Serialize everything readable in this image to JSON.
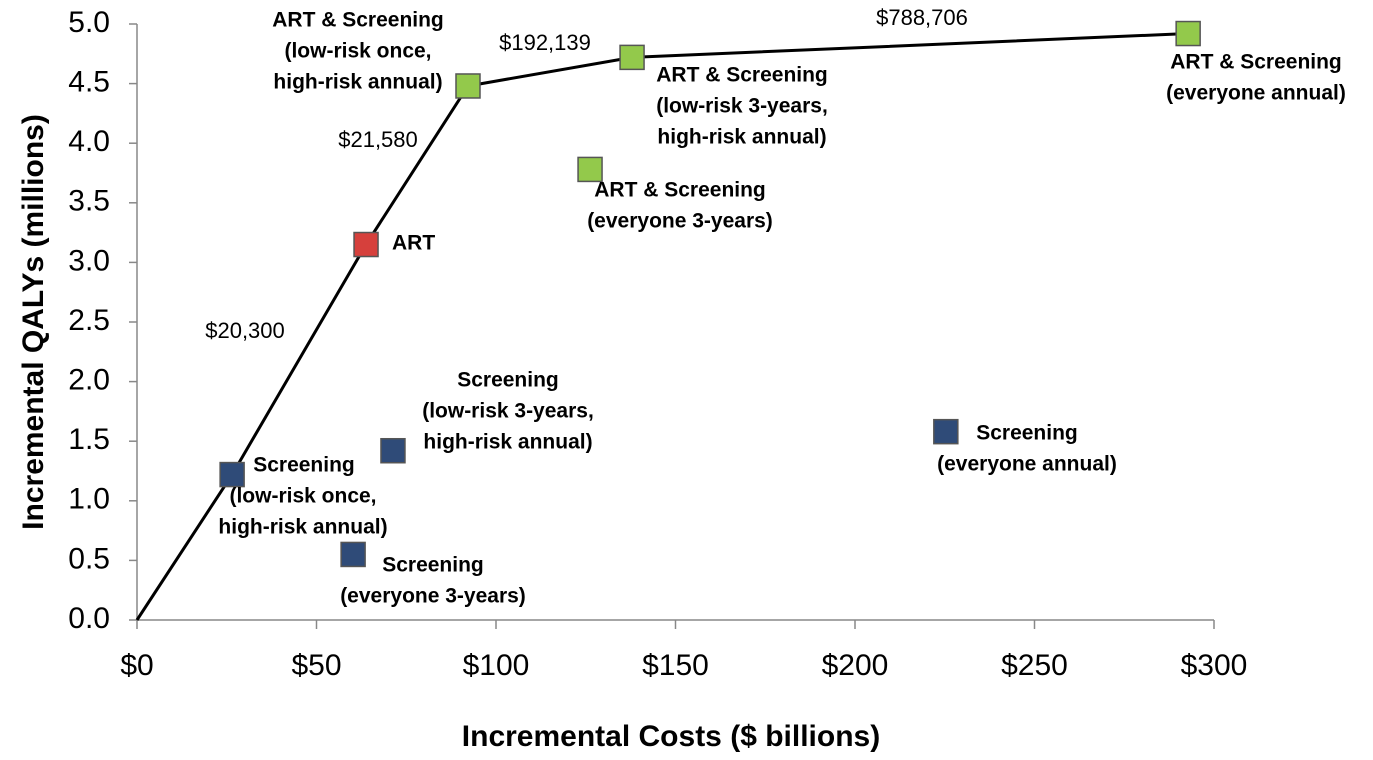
{
  "chart_data": {
    "type": "scatter",
    "x_label": "Incremental Costs ($ billions)",
    "y_label": "Incremental QALYs (millions)",
    "xlim": [
      0,
      300
    ],
    "ylim": [
      0,
      5
    ],
    "xticks": [
      {
        "value": 0,
        "label": "$0"
      },
      {
        "value": 50,
        "label": "$50"
      },
      {
        "value": 100,
        "label": "$100"
      },
      {
        "value": 150,
        "label": "$150"
      },
      {
        "value": 200,
        "label": "$200"
      },
      {
        "value": 250,
        "label": "$250"
      },
      {
        "value": 300,
        "label": "$300"
      }
    ],
    "yticks": [
      {
        "value": 0,
        "label": "0.0"
      },
      {
        "value": 0.5,
        "label": "0.5"
      },
      {
        "value": 1,
        "label": "1.0"
      },
      {
        "value": 1.5,
        "label": "1.5"
      },
      {
        "value": 2,
        "label": "2.0"
      },
      {
        "value": 2.5,
        "label": "2.5"
      },
      {
        "value": 3,
        "label": "3.0"
      },
      {
        "value": 3.5,
        "label": "3.5"
      },
      {
        "value": 4,
        "label": "4.0"
      },
      {
        "value": 4.5,
        "label": "4.5"
      },
      {
        "value": 5,
        "label": "5.0"
      }
    ],
    "x": [
      26.5,
      60.2,
      71.3,
      225.3,
      63.8,
      92.2,
      126.2,
      137.9,
      292.8
    ],
    "values": [
      1.22,
      0.55,
      1.42,
      1.58,
      3.15,
      4.48,
      3.78,
      4.72,
      4.92
    ],
    "point_labels": [
      [
        "Screening",
        "(low-risk once,",
        "high-risk annual)"
      ],
      [
        "Screening",
        "(everyone 3-years)"
      ],
      [
        "Screening",
        "(low-risk 3-years,",
        "high-risk annual)"
      ],
      [
        "Screening",
        "(everyone annual)"
      ],
      [
        "ART"
      ],
      [
        "ART & Screening",
        "(low-risk once,",
        "high-risk annual)"
      ],
      [
        "ART & Screening",
        "(everyone 3-years)"
      ],
      [
        "ART & Screening",
        "(low-risk 3-years,",
        "high-risk annual)"
      ],
      [
        "ART & Screening",
        "(everyone annual)"
      ]
    ],
    "colors": [
      "#2f4b78",
      "#2f4b78",
      "#2f4b78",
      "#2f4b78",
      "#d6403c",
      "#93c94b",
      "#93c94b",
      "#93c94b",
      "#93c94b"
    ],
    "frontier": {
      "color": "#000000",
      "x": [
        0,
        26.5,
        63.8,
        92.2,
        137.9,
        292.8
      ],
      "values": [
        0,
        1.22,
        3.15,
        4.48,
        4.72,
        4.92
      ]
    },
    "annotations": [
      "$20,300",
      "$21,580",
      "$192,139",
      "$788,706"
    ]
  }
}
